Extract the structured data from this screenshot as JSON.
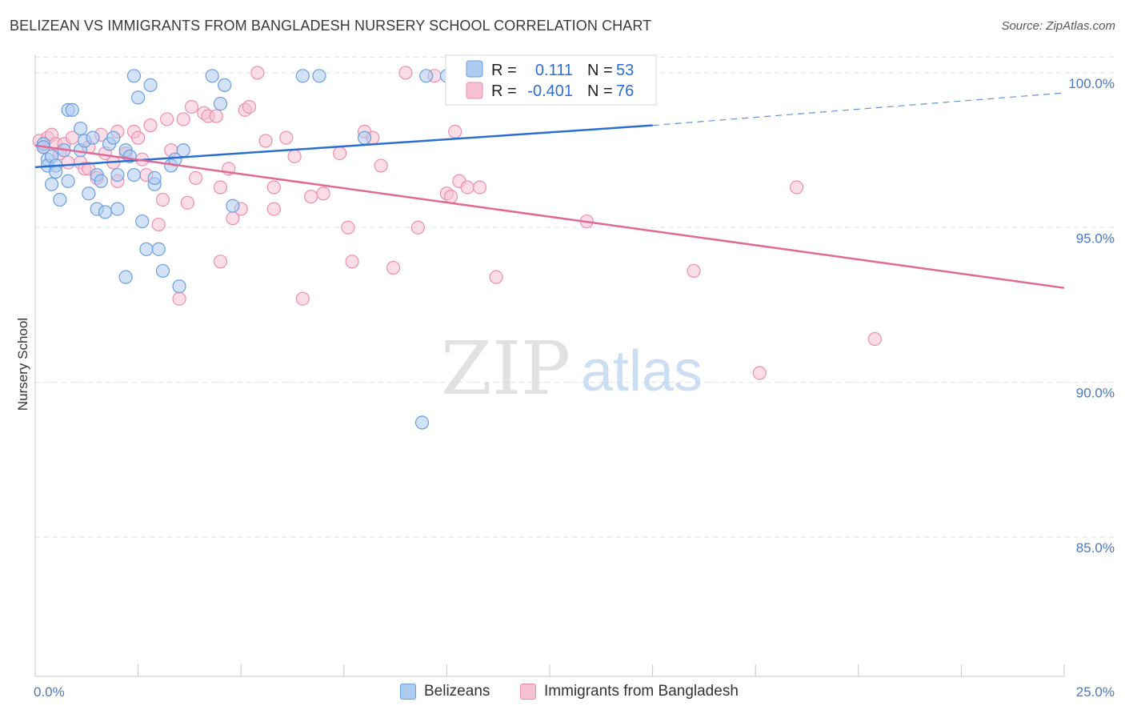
{
  "header": {
    "title": "BELIZEAN VS IMMIGRANTS FROM BANGLADESH NURSERY SCHOOL CORRELATION CHART",
    "source": "Source: ZipAtlas.com"
  },
  "watermark": {
    "zip": "ZIP",
    "atlas": "atlas"
  },
  "colors": {
    "blue": "#6a9fe0",
    "blue_fill": "#aecbf0",
    "blue_line": "#2a6fcf",
    "pink": "#ec8fae",
    "pink_fill": "#f6c1d3",
    "pink_line": "#e06a95",
    "axis_label": "#4a78c0",
    "grid": "#dde3ea"
  },
  "legend": {
    "items": [
      {
        "r_label": "R =",
        "r_value": "0.111",
        "n_label": "N =",
        "n_value": "53"
      },
      {
        "r_label": "R =",
        "r_value": "-0.401",
        "n_label": "N =",
        "n_value": "76"
      }
    ]
  },
  "bottom_legend": {
    "series1": "Belizeans",
    "series2": "Immigrants from Bangladesh"
  },
  "chart_data": {
    "type": "scatter",
    "title": "BELIZEAN VS IMMIGRANTS FROM BANGLADESH NURSERY SCHOOL CORRELATION CHART",
    "xlabel": "",
    "ylabel": "Nursery School",
    "xlim": [
      0,
      25
    ],
    "ylim": [
      80.5,
      100.8
    ],
    "x_ticks": [
      0,
      2.5,
      5,
      7.5,
      10,
      12.5,
      15,
      17.5,
      20,
      22.5,
      25
    ],
    "x_tick_labels": {
      "0": "0.0%",
      "25": "25.0%"
    },
    "y_ticks": [
      85,
      90,
      95,
      100
    ],
    "y_tick_labels": [
      "85.0%",
      "90.0%",
      "95.0%",
      "100.0%"
    ],
    "grid": true,
    "series": [
      {
        "name": "Belizeans",
        "r": 0.111,
        "n": 53,
        "trend": {
          "x0": 0,
          "y0": 96.95,
          "x1": 15,
          "y1": 98.3,
          "dashed_to_x": 25,
          "dashed_to_y": 99.35
        },
        "points": [
          [
            0.2,
            97.7
          ],
          [
            0.2,
            97.6
          ],
          [
            0.3,
            97.2
          ],
          [
            0.3,
            97.0
          ],
          [
            0.4,
            96.4
          ],
          [
            0.4,
            97.3
          ],
          [
            0.5,
            97.0
          ],
          [
            0.5,
            96.8
          ],
          [
            0.6,
            95.9
          ],
          [
            0.7,
            97.5
          ],
          [
            0.8,
            96.5
          ],
          [
            0.8,
            98.8
          ],
          [
            0.9,
            98.8
          ],
          [
            1.1,
            98.2
          ],
          [
            1.1,
            97.5
          ],
          [
            1.2,
            97.8
          ],
          [
            1.3,
            96.1
          ],
          [
            1.4,
            97.9
          ],
          [
            1.5,
            96.7
          ],
          [
            1.5,
            95.6
          ],
          [
            1.6,
            96.5
          ],
          [
            1.7,
            95.5
          ],
          [
            1.8,
            97.7
          ],
          [
            1.9,
            97.9
          ],
          [
            2.0,
            96.7
          ],
          [
            2.0,
            95.6
          ],
          [
            2.2,
            97.5
          ],
          [
            2.2,
            93.4
          ],
          [
            2.3,
            97.3
          ],
          [
            2.4,
            96.7
          ],
          [
            2.4,
            99.9
          ],
          [
            2.5,
            99.2
          ],
          [
            2.6,
            95.2
          ],
          [
            2.7,
            94.3
          ],
          [
            2.9,
            96.4
          ],
          [
            2.9,
            96.6
          ],
          [
            3.1,
            93.6
          ],
          [
            3.0,
            94.3
          ],
          [
            3.3,
            97.0
          ],
          [
            3.4,
            97.2
          ],
          [
            3.5,
            93.1
          ],
          [
            3.6,
            97.5
          ],
          [
            4.3,
            99.9
          ],
          [
            4.5,
            99.0
          ],
          [
            4.6,
            99.6
          ],
          [
            4.8,
            95.7
          ],
          [
            6.5,
            99.9
          ],
          [
            6.9,
            99.9
          ],
          [
            8.0,
            97.9
          ],
          [
            9.5,
            99.9
          ],
          [
            10.0,
            99.9
          ],
          [
            9.4,
            88.7
          ],
          [
            2.8,
            99.6
          ]
        ]
      },
      {
        "name": "Immigrants from Bangladesh",
        "r": -0.401,
        "n": 76,
        "trend": {
          "x0": 0,
          "y0": 97.65,
          "x1": 25,
          "y1": 93.05
        },
        "points": [
          [
            0.1,
            97.8
          ],
          [
            0.2,
            97.6
          ],
          [
            0.3,
            97.9
          ],
          [
            0.4,
            98.0
          ],
          [
            0.5,
            97.7
          ],
          [
            0.6,
            97.4
          ],
          [
            0.7,
            97.7
          ],
          [
            0.8,
            97.1
          ],
          [
            0.9,
            97.9
          ],
          [
            1.1,
            97.1
          ],
          [
            1.2,
            96.9
          ],
          [
            1.3,
            96.9
          ],
          [
            1.3,
            97.6
          ],
          [
            1.5,
            96.6
          ],
          [
            1.6,
            98.0
          ],
          [
            1.7,
            97.4
          ],
          [
            1.9,
            97.1
          ],
          [
            2.0,
            96.5
          ],
          [
            2.0,
            98.1
          ],
          [
            2.2,
            97.4
          ],
          [
            2.4,
            98.1
          ],
          [
            2.5,
            97.9
          ],
          [
            2.6,
            97.2
          ],
          [
            2.7,
            96.7
          ],
          [
            2.8,
            98.3
          ],
          [
            3.0,
            95.1
          ],
          [
            3.1,
            95.9
          ],
          [
            3.2,
            98.5
          ],
          [
            3.3,
            97.5
          ],
          [
            3.5,
            92.7
          ],
          [
            3.6,
            98.5
          ],
          [
            3.7,
            95.8
          ],
          [
            3.8,
            98.9
          ],
          [
            3.9,
            96.6
          ],
          [
            4.1,
            98.7
          ],
          [
            4.2,
            98.6
          ],
          [
            4.4,
            98.6
          ],
          [
            4.5,
            96.3
          ],
          [
            4.5,
            93.9
          ],
          [
            4.7,
            96.9
          ],
          [
            4.8,
            95.3
          ],
          [
            5.0,
            95.6
          ],
          [
            5.1,
            98.8
          ],
          [
            5.2,
            98.9
          ],
          [
            5.4,
            100.0
          ],
          [
            5.6,
            97.8
          ],
          [
            5.8,
            96.3
          ],
          [
            5.8,
            95.6
          ],
          [
            6.1,
            97.9
          ],
          [
            6.3,
            97.3
          ],
          [
            6.5,
            92.7
          ],
          [
            6.7,
            96.0
          ],
          [
            7.0,
            96.1
          ],
          [
            7.4,
            97.4
          ],
          [
            7.6,
            95.0
          ],
          [
            7.7,
            93.9
          ],
          [
            8.0,
            98.1
          ],
          [
            8.2,
            97.9
          ],
          [
            8.4,
            97.0
          ],
          [
            8.7,
            93.7
          ],
          [
            9.0,
            100.0
          ],
          [
            9.3,
            95.0
          ],
          [
            9.7,
            99.9
          ],
          [
            10.0,
            96.1
          ],
          [
            10.1,
            96.0
          ],
          [
            10.2,
            98.1
          ],
          [
            10.3,
            96.5
          ],
          [
            10.5,
            96.3
          ],
          [
            10.8,
            96.3
          ],
          [
            11.2,
            93.4
          ],
          [
            11.9,
            100.0
          ],
          [
            13.4,
            95.2
          ],
          [
            16.0,
            93.6
          ],
          [
            17.6,
            90.3
          ],
          [
            18.5,
            96.3
          ],
          [
            20.4,
            91.4
          ]
        ]
      }
    ]
  }
}
